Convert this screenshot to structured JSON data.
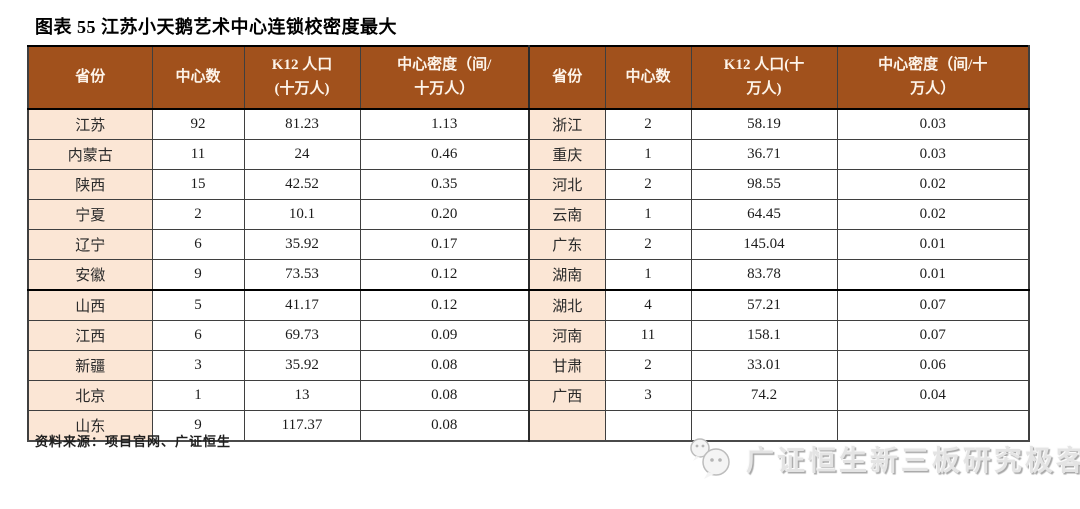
{
  "title": "图表 55 江苏小天鹅艺术中心连锁校密度最大",
  "table": {
    "left": {
      "headers": [
        "省份",
        "中心数",
        "K12 人口\n(十万人)",
        "中心密度（间/\n十万人）"
      ],
      "rows": [
        [
          "江苏",
          "92",
          "81.23",
          "1.13"
        ],
        [
          "内蒙古",
          "11",
          "24",
          "0.46"
        ],
        [
          "陕西",
          "15",
          "42.52",
          "0.35"
        ],
        [
          "宁夏",
          "2",
          "10.1",
          "0.20"
        ],
        [
          "辽宁",
          "6",
          "35.92",
          "0.17"
        ],
        [
          "安徽",
          "9",
          "73.53",
          "0.12"
        ],
        [
          "山西",
          "5",
          "41.17",
          "0.12"
        ],
        [
          "江西",
          "6",
          "69.73",
          "0.09"
        ],
        [
          "新疆",
          "3",
          "35.92",
          "0.08"
        ],
        [
          "北京",
          "1",
          "13",
          "0.08"
        ],
        [
          "山东",
          "9",
          "117.37",
          "0.08"
        ]
      ]
    },
    "right": {
      "headers": [
        "省份",
        "中心数",
        "K12 人口(十\n万人)",
        "中心密度（间/十\n万人）"
      ],
      "rows": [
        [
          "浙江",
          "2",
          "58.19",
          "0.03"
        ],
        [
          "重庆",
          "1",
          "36.71",
          "0.03"
        ],
        [
          "河北",
          "2",
          "98.55",
          "0.02"
        ],
        [
          "云南",
          "1",
          "64.45",
          "0.02"
        ],
        [
          "广东",
          "2",
          "145.04",
          "0.01"
        ],
        [
          "湖南",
          "1",
          "83.78",
          "0.01"
        ],
        [
          "湖北",
          "4",
          "57.21",
          "0.07"
        ],
        [
          "河南",
          "11",
          "158.1",
          "0.07"
        ],
        [
          "甘肃",
          "2",
          "33.01",
          "0.06"
        ],
        [
          "广西",
          "3",
          "74.2",
          "0.04"
        ],
        [
          "",
          "",
          "",
          ""
        ]
      ]
    },
    "thick_divider_after_row": 6
  },
  "source": "资料来源：项目官网、广证恒生",
  "watermark": {
    "icon": "wechat-icon",
    "text": "广证恒生新三板研究极客"
  },
  "colors": {
    "header_bg": "#A1511C",
    "province_bg": "#FBE6D5",
    "border": "#3F3F3F",
    "watermark_gray": "#E4E4E4"
  }
}
